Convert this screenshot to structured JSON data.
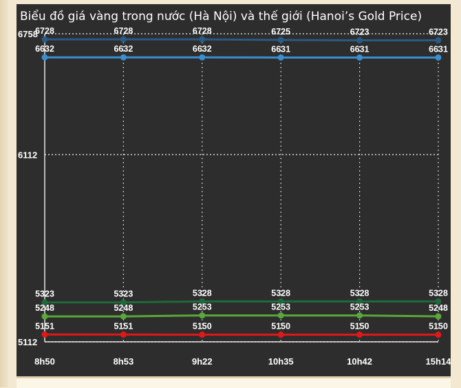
{
  "chart_data": {
    "type": "line",
    "title": "Biểu đồ giá vàng trong nước (Hà Nội) và thế giới (Hanoi’s Gold Price)",
    "xlabel": "",
    "ylabel": "",
    "categories": [
      "8h50",
      "8h53",
      "9h22",
      "10h35",
      "10h42",
      "15h14"
    ],
    "y_ticks": [
      5112,
      6112,
      6758
    ],
    "ylim": [
      5112,
      6758
    ],
    "grid": true,
    "legend": "none",
    "series": [
      {
        "color": "#2a5a86",
        "values": [
          6728,
          6728,
          6728,
          6725,
          6723,
          6723
        ]
      },
      {
        "color": "#3a8fd0",
        "values": [
          6632,
          6632,
          6632,
          6631,
          6631,
          6631
        ]
      },
      {
        "color": "#1f6a3a",
        "values": [
          5323,
          5323,
          5328,
          5328,
          5328,
          5328
        ]
      },
      {
        "color": "#5aa83a",
        "values": [
          5248,
          5248,
          5253,
          5253,
          5253,
          5248
        ]
      },
      {
        "color": "#e01818",
        "values": [
          5151,
          5151,
          5150,
          5150,
          5150,
          5150
        ]
      }
    ]
  }
}
